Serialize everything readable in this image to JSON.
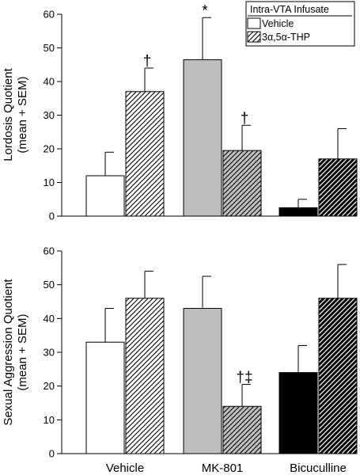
{
  "chart_data": [
    {
      "type": "bar",
      "ylabel_line1": "Lordosis Quotient",
      "ylabel_line2": "(mean + SEM)",
      "ylim": [
        0,
        60
      ],
      "yticks": [
        "0",
        "10",
        "20",
        "30",
        "40",
        "50",
        "60"
      ],
      "categories": [
        "Vehicle",
        "MK-801",
        "Bicuculline"
      ],
      "category_colors": [
        "#ffffff",
        "#bebebe",
        "#000000"
      ],
      "legend": {
        "title": "Intra-VTA Infusate",
        "entries": [
          "Vehicle",
          "3α,5α-THP"
        ],
        "placement": "top-right"
      },
      "bars": [
        {
          "category": "Vehicle",
          "series": "Vehicle",
          "value": 12,
          "sem": 7,
          "marker": ""
        },
        {
          "category": "Vehicle",
          "series": "3α,5α-THP",
          "value": 37,
          "sem": 7,
          "marker": "†"
        },
        {
          "category": "MK-801",
          "series": "Vehicle",
          "value": 46.5,
          "sem": 12.5,
          "marker": "*"
        },
        {
          "category": "MK-801",
          "series": "3α,5α-THP",
          "value": 19.5,
          "sem": 7.5,
          "marker": "†"
        },
        {
          "category": "Bicuculline",
          "series": "Vehicle",
          "value": 2.5,
          "sem": 2.5,
          "marker": ""
        },
        {
          "category": "Bicuculline",
          "series": "3α,5α-THP",
          "value": 17,
          "sem": 9,
          "marker": ""
        }
      ]
    },
    {
      "type": "bar",
      "ylabel_line1": "Sexual Aggression Quotient",
      "ylabel_line2": "(mean + SEM)",
      "ylim": [
        0,
        60
      ],
      "yticks": [
        "0",
        "10",
        "20",
        "30",
        "40",
        "50",
        "60"
      ],
      "categories": [
        "Vehicle",
        "MK-801",
        "Bicuculline"
      ],
      "category_colors": [
        "#ffffff",
        "#bebebe",
        "#000000"
      ],
      "bars": [
        {
          "category": "Vehicle",
          "series": "Vehicle",
          "value": 33,
          "sem": 10,
          "marker": ""
        },
        {
          "category": "Vehicle",
          "series": "3α,5α-THP",
          "value": 46,
          "sem": 8,
          "marker": ""
        },
        {
          "category": "MK-801",
          "series": "Vehicle",
          "value": 43,
          "sem": 9.5,
          "marker": ""
        },
        {
          "category": "MK-801",
          "series": "3α,5α-THP",
          "value": 14,
          "sem": 6.5,
          "marker": "†‡"
        },
        {
          "category": "Bicuculline",
          "series": "Vehicle",
          "value": 24,
          "sem": 8,
          "marker": ""
        },
        {
          "category": "Bicuculline",
          "series": "3α,5α-THP",
          "value": 46,
          "sem": 10,
          "marker": ""
        }
      ]
    }
  ]
}
